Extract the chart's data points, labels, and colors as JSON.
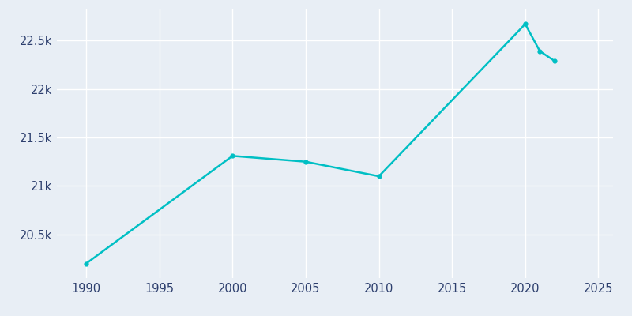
{
  "years": [
    1990,
    2000,
    2005,
    2010,
    2020,
    2021,
    2022
  ],
  "population": [
    20200,
    21310,
    21250,
    21100,
    22670,
    22390,
    22290
  ],
  "line_color": "#00bfc4",
  "marker_color": "#00bfc4",
  "plot_bg_color": "#e8eef5",
  "grid_color": "#ffffff",
  "tick_label_color": "#2d3f6e",
  "xlim": [
    1988,
    2026
  ],
  "ylim": [
    20050,
    22820
  ],
  "xticks": [
    1990,
    1995,
    2000,
    2005,
    2010,
    2015,
    2020,
    2025
  ],
  "yticks": [
    20500,
    21000,
    21500,
    22000,
    22500
  ],
  "ytick_labels": [
    "20.5k",
    "21k",
    "21.5k",
    "22k",
    "22.5k"
  ],
  "line_width": 1.8,
  "marker_size": 3.5
}
